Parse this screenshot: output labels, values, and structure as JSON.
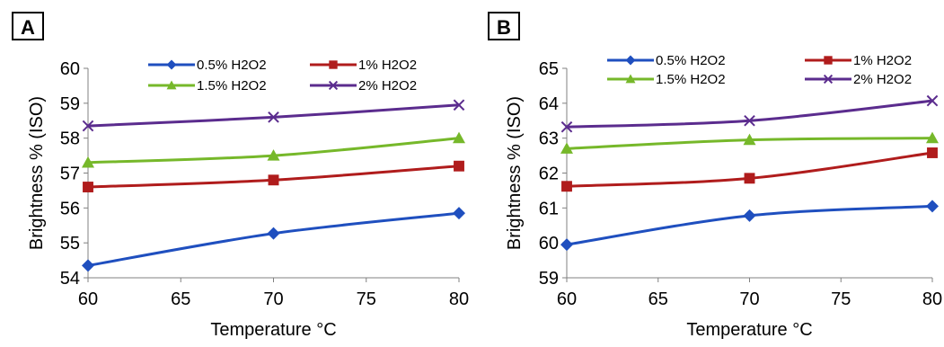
{
  "chart_data": [
    {
      "type": "line",
      "panel_label": "A",
      "xlabel": "Temperature °C",
      "ylabel": "Brightness % (ISO)",
      "x": [
        60,
        70,
        80
      ],
      "xlim": [
        60,
        80
      ],
      "ylim": [
        54,
        60
      ],
      "xticks": [
        "60",
        "65",
        "70",
        "75",
        "80"
      ],
      "yticks": [
        "54",
        "55",
        "56",
        "57",
        "58",
        "59",
        "60"
      ],
      "grid": false,
      "legend_position": "top",
      "series": [
        {
          "name": "0.5% H2O2",
          "values": [
            54.35,
            55.27,
            55.85
          ],
          "color": "#1f4fbf",
          "marker": "diamond"
        },
        {
          "name": "1% H2O2",
          "values": [
            56.6,
            56.8,
            57.2
          ],
          "color": "#b01c1c",
          "marker": "square"
        },
        {
          "name": "1.5% H2O2",
          "values": [
            57.3,
            57.5,
            58.0
          ],
          "color": "#76b82a",
          "marker": "triangle"
        },
        {
          "name": "2% H2O2",
          "values": [
            58.35,
            58.6,
            58.95
          ],
          "color": "#5b2c8e",
          "marker": "x"
        }
      ]
    },
    {
      "type": "line",
      "panel_label": "B",
      "xlabel": "Temperature °C",
      "ylabel": "Brightness % (ISO)",
      "x": [
        60,
        70,
        80
      ],
      "xlim": [
        60,
        80
      ],
      "ylim": [
        59,
        65
      ],
      "xticks": [
        "60",
        "65",
        "70",
        "75",
        "80"
      ],
      "yticks": [
        "59",
        "60",
        "61",
        "62",
        "63",
        "64",
        "65"
      ],
      "grid": false,
      "legend_position": "top",
      "series": [
        {
          "name": "0.5% H2O2",
          "values": [
            59.95,
            60.78,
            61.05
          ],
          "color": "#1f4fbf",
          "marker": "diamond"
        },
        {
          "name": "1% H2O2",
          "values": [
            61.62,
            61.85,
            62.58
          ],
          "color": "#b01c1c",
          "marker": "square"
        },
        {
          "name": "1.5% H2O2",
          "values": [
            62.7,
            62.95,
            63.0
          ],
          "color": "#76b82a",
          "marker": "triangle"
        },
        {
          "name": "2% H2O2",
          "values": [
            63.32,
            63.5,
            64.07
          ],
          "color": "#5b2c8e",
          "marker": "x"
        }
      ]
    }
  ]
}
